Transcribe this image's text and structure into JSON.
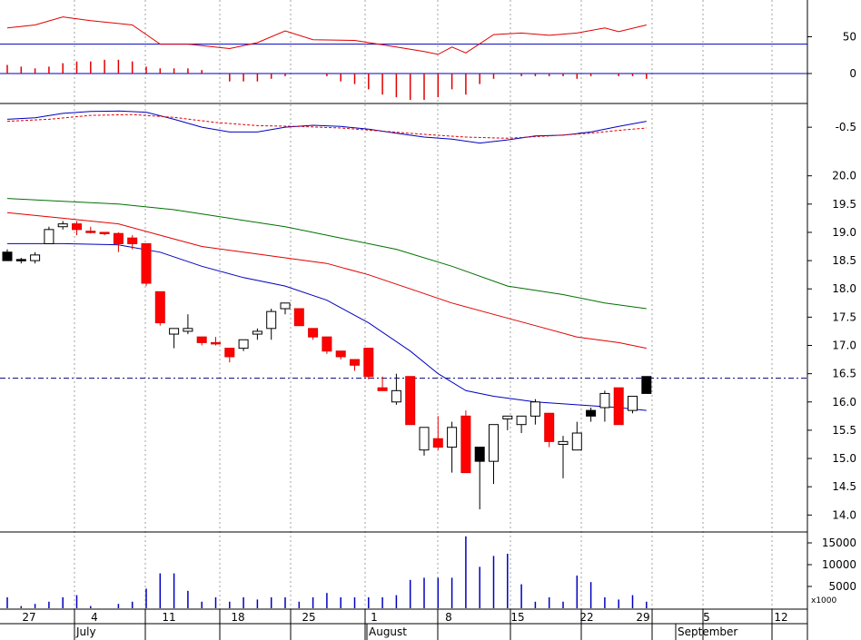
{
  "chart_data": {
    "type": "candlestick",
    "x_axis": {
      "day_labels": [
        "27",
        "4",
        "11",
        "18",
        "25",
        "1",
        "8",
        "15",
        "22",
        "29",
        "5",
        "12"
      ],
      "month_labels": [
        "July",
        "August",
        "September"
      ]
    },
    "price_panel": {
      "type": "candlestick",
      "ylim": [
        13.7,
        20.3
      ],
      "yticks": [
        "14.0",
        "14.5",
        "15.0",
        "15.5",
        "16.0",
        "16.5",
        "17.0",
        "17.5",
        "18.0",
        "18.5",
        "19.0",
        "19.5",
        "20.0"
      ],
      "reference_line": 16.42,
      "candles": [
        {
          "o": 18.65,
          "h": 18.7,
          "l": 18.5,
          "c": 18.5,
          "color": "black"
        },
        {
          "o": 18.5,
          "h": 18.55,
          "l": 18.45,
          "c": 18.52,
          "color": "black"
        },
        {
          "o": 18.5,
          "h": 18.65,
          "l": 18.45,
          "c": 18.6,
          "color": "white"
        },
        {
          "o": 18.8,
          "h": 19.1,
          "l": 18.8,
          "c": 19.05,
          "color": "white"
        },
        {
          "o": 19.1,
          "h": 19.2,
          "l": 19.05,
          "c": 19.15,
          "color": "white"
        },
        {
          "o": 19.15,
          "h": 19.2,
          "l": 18.95,
          "c": 19.05,
          "color": "red"
        },
        {
          "o": 19.02,
          "h": 19.1,
          "l": 18.98,
          "c": 19.0,
          "color": "red"
        },
        {
          "o": 19.0,
          "h": 19.0,
          "l": 18.95,
          "c": 18.98,
          "color": "red"
        },
        {
          "o": 18.98,
          "h": 19.0,
          "l": 18.65,
          "c": 18.8,
          "color": "red"
        },
        {
          "o": 18.9,
          "h": 18.95,
          "l": 18.7,
          "c": 18.8,
          "color": "red"
        },
        {
          "o": 18.8,
          "h": 18.8,
          "l": 18.05,
          "c": 18.1,
          "color": "red"
        },
        {
          "o": 17.95,
          "h": 17.95,
          "l": 17.35,
          "c": 17.4,
          "color": "red"
        },
        {
          "o": 17.2,
          "h": 17.3,
          "l": 16.95,
          "c": 17.3,
          "color": "white"
        },
        {
          "o": 17.25,
          "h": 17.55,
          "l": 17.2,
          "c": 17.3,
          "color": "white"
        },
        {
          "o": 17.15,
          "h": 17.15,
          "l": 17.0,
          "c": 17.05,
          "color": "red"
        },
        {
          "o": 17.05,
          "h": 17.15,
          "l": 17.0,
          "c": 17.05,
          "color": "red"
        },
        {
          "o": 16.95,
          "h": 16.95,
          "l": 16.7,
          "c": 16.8,
          "color": "red"
        },
        {
          "o": 16.95,
          "h": 17.1,
          "l": 16.9,
          "c": 17.1,
          "color": "white"
        },
        {
          "o": 17.2,
          "h": 17.3,
          "l": 17.1,
          "c": 17.25,
          "color": "white"
        },
        {
          "o": 17.3,
          "h": 17.65,
          "l": 17.1,
          "c": 17.6,
          "color": "white"
        },
        {
          "o": 17.65,
          "h": 17.75,
          "l": 17.55,
          "c": 17.75,
          "color": "white"
        },
        {
          "o": 17.65,
          "h": 17.65,
          "l": 17.35,
          "c": 17.35,
          "color": "red"
        },
        {
          "o": 17.3,
          "h": 17.3,
          "l": 17.1,
          "c": 17.15,
          "color": "red"
        },
        {
          "o": 17.15,
          "h": 17.15,
          "l": 16.85,
          "c": 16.9,
          "color": "red"
        },
        {
          "o": 16.9,
          "h": 16.9,
          "l": 16.75,
          "c": 16.8,
          "color": "red"
        },
        {
          "o": 16.75,
          "h": 16.75,
          "l": 16.55,
          "c": 16.65,
          "color": "red"
        },
        {
          "o": 16.95,
          "h": 16.95,
          "l": 16.4,
          "c": 16.45,
          "color": "red"
        },
        {
          "o": 16.25,
          "h": 16.45,
          "l": 16.2,
          "c": 16.2,
          "color": "red"
        },
        {
          "o": 16.0,
          "h": 16.5,
          "l": 15.95,
          "c": 16.2,
          "color": "white"
        },
        {
          "o": 16.45,
          "h": 16.45,
          "l": 15.6,
          "c": 15.6,
          "color": "red"
        },
        {
          "o": 15.15,
          "h": 15.55,
          "l": 15.05,
          "c": 15.55,
          "color": "white"
        },
        {
          "o": 15.35,
          "h": 15.75,
          "l": 15.15,
          "c": 15.2,
          "color": "red"
        },
        {
          "o": 15.2,
          "h": 15.65,
          "l": 14.75,
          "c": 15.55,
          "color": "white"
        },
        {
          "o": 15.75,
          "h": 15.85,
          "l": 14.75,
          "c": 14.75,
          "color": "red"
        },
        {
          "o": 15.2,
          "h": 15.2,
          "l": 14.1,
          "c": 14.95,
          "color": "black"
        },
        {
          "o": 14.95,
          "h": 15.6,
          "l": 14.55,
          "c": 15.6,
          "color": "white"
        },
        {
          "o": 15.7,
          "h": 15.75,
          "l": 15.5,
          "c": 15.75,
          "color": "white"
        },
        {
          "o": 15.6,
          "h": 15.75,
          "l": 15.45,
          "c": 15.75,
          "color": "white"
        },
        {
          "o": 15.75,
          "h": 16.05,
          "l": 15.6,
          "c": 16.0,
          "color": "white"
        },
        {
          "o": 15.8,
          "h": 15.8,
          "l": 15.2,
          "c": 15.3,
          "color": "red"
        },
        {
          "o": 15.25,
          "h": 15.4,
          "l": 14.65,
          "c": 15.3,
          "color": "white"
        },
        {
          "o": 15.15,
          "h": 15.65,
          "l": 15.15,
          "c": 15.45,
          "color": "white"
        },
        {
          "o": 15.85,
          "h": 15.9,
          "l": 15.65,
          "c": 15.75,
          "color": "black"
        },
        {
          "o": 15.9,
          "h": 16.2,
          "l": 15.65,
          "c": 16.15,
          "color": "white"
        },
        {
          "o": 16.25,
          "h": 16.25,
          "l": 15.6,
          "c": 15.6,
          "color": "red"
        },
        {
          "o": 15.85,
          "h": 16.1,
          "l": 15.8,
          "c": 16.1,
          "color": "white"
        },
        {
          "o": 16.45,
          "h": 16.45,
          "l": 16.15,
          "c": 16.15,
          "color": "black"
        }
      ],
      "moving_averages": [
        {
          "color": "#0000c0",
          "values": [
            {
              "i": 0,
              "v": 18.8
            },
            {
              "i": 4,
              "v": 18.8
            },
            {
              "i": 8,
              "v": 18.78
            },
            {
              "i": 11,
              "v": 18.65
            },
            {
              "i": 14,
              "v": 18.4
            },
            {
              "i": 17,
              "v": 18.2
            },
            {
              "i": 20,
              "v": 18.05
            },
            {
              "i": 23,
              "v": 17.8
            },
            {
              "i": 26,
              "v": 17.4
            },
            {
              "i": 29,
              "v": 16.9
            },
            {
              "i": 31,
              "v": 16.5
            },
            {
              "i": 33,
              "v": 16.2
            },
            {
              "i": 35,
              "v": 16.1
            },
            {
              "i": 38,
              "v": 16.0
            },
            {
              "i": 41,
              "v": 15.95
            },
            {
              "i": 44,
              "v": 15.9
            },
            {
              "i": 46,
              "v": 15.85
            }
          ]
        },
        {
          "color": "#e00000",
          "values": [
            {
              "i": 0,
              "v": 19.35
            },
            {
              "i": 4,
              "v": 19.25
            },
            {
              "i": 8,
              "v": 19.15
            },
            {
              "i": 11,
              "v": 18.95
            },
            {
              "i": 14,
              "v": 18.75
            },
            {
              "i": 17,
              "v": 18.65
            },
            {
              "i": 20,
              "v": 18.55
            },
            {
              "i": 23,
              "v": 18.45
            },
            {
              "i": 26,
              "v": 18.25
            },
            {
              "i": 29,
              "v": 18.0
            },
            {
              "i": 32,
              "v": 17.75
            },
            {
              "i": 35,
              "v": 17.55
            },
            {
              "i": 38,
              "v": 17.35
            },
            {
              "i": 41,
              "v": 17.15
            },
            {
              "i": 44,
              "v": 17.05
            },
            {
              "i": 46,
              "v": 16.95
            }
          ]
        },
        {
          "color": "#007000",
          "values": [
            {
              "i": 0,
              "v": 19.6
            },
            {
              "i": 4,
              "v": 19.55
            },
            {
              "i": 8,
              "v": 19.5
            },
            {
              "i": 12,
              "v": 19.4
            },
            {
              "i": 16,
              "v": 19.25
            },
            {
              "i": 20,
              "v": 19.1
            },
            {
              "i": 24,
              "v": 18.9
            },
            {
              "i": 28,
              "v": 18.7
            },
            {
              "i": 32,
              "v": 18.4
            },
            {
              "i": 36,
              "v": 18.05
            },
            {
              "i": 40,
              "v": 17.9
            },
            {
              "i": 43,
              "v": 17.75
            },
            {
              "i": 46,
              "v": 17.65
            }
          ]
        }
      ]
    },
    "rsi_panel": {
      "ylim": [
        0,
        100
      ],
      "yticks": [
        "50"
      ],
      "reference_line": 40,
      "series": {
        "color": "#e00000",
        "values": [
          {
            "i": 0,
            "v": 62
          },
          {
            "i": 2,
            "v": 66
          },
          {
            "i": 4,
            "v": 77
          },
          {
            "i": 6,
            "v": 72
          },
          {
            "i": 9,
            "v": 66
          },
          {
            "i": 11,
            "v": 40
          },
          {
            "i": 13,
            "v": 40
          },
          {
            "i": 16,
            "v": 34
          },
          {
            "i": 18,
            "v": 42
          },
          {
            "i": 20,
            "v": 58
          },
          {
            "i": 22,
            "v": 46
          },
          {
            "i": 25,
            "v": 45
          },
          {
            "i": 28,
            "v": 36
          },
          {
            "i": 30,
            "v": 30
          },
          {
            "i": 31,
            "v": 26
          },
          {
            "i": 32,
            "v": 36
          },
          {
            "i": 33,
            "v": 28
          },
          {
            "i": 35,
            "v": 53
          },
          {
            "i": 37,
            "v": 55
          },
          {
            "i": 39,
            "v": 52
          },
          {
            "i": 41,
            "v": 55
          },
          {
            "i": 43,
            "v": 62
          },
          {
            "i": 44,
            "v": 57
          },
          {
            "i": 46,
            "v": 66
          }
        ]
      }
    },
    "histogram_panel": {
      "ylim": [
        -1,
        1
      ],
      "yticks": [
        "0"
      ],
      "values": [
        0.5,
        0.4,
        0.3,
        0.4,
        0.6,
        0.7,
        0.7,
        0.8,
        0.8,
        0.7,
        0.4,
        0.3,
        0.3,
        0.3,
        0.2,
        0,
        -0.3,
        -0.3,
        -0.3,
        -0.2,
        -0.1,
        0,
        0,
        -0.1,
        -0.3,
        -0.4,
        -0.6,
        -0.8,
        -0.9,
        -1.0,
        -1.0,
        -0.9,
        -0.6,
        -0.8,
        -0.4,
        -0.2,
        0,
        -0.1,
        -0.1,
        -0.1,
        -0.1,
        -0.2,
        -0.1,
        0,
        -0.1,
        -0.1,
        -0.2
      ]
    },
    "macd_panel": {
      "ylim": [
        -1.3,
        0.1
      ],
      "yticks": [
        "-0.5"
      ],
      "macd": {
        "color": "#0000c0",
        "values": [
          {
            "i": 0,
            "v": -0.3
          },
          {
            "i": 2,
            "v": -0.26
          },
          {
            "i": 4,
            "v": -0.15
          },
          {
            "i": 6,
            "v": -0.1
          },
          {
            "i": 8,
            "v": -0.09
          },
          {
            "i": 10,
            "v": -0.12
          },
          {
            "i": 12,
            "v": -0.3
          },
          {
            "i": 14,
            "v": -0.5
          },
          {
            "i": 16,
            "v": -0.62
          },
          {
            "i": 18,
            "v": -0.62
          },
          {
            "i": 20,
            "v": -0.5
          },
          {
            "i": 22,
            "v": -0.45
          },
          {
            "i": 24,
            "v": -0.48
          },
          {
            "i": 26,
            "v": -0.55
          },
          {
            "i": 28,
            "v": -0.65
          },
          {
            "i": 30,
            "v": -0.75
          },
          {
            "i": 32,
            "v": -0.8
          },
          {
            "i": 34,
            "v": -0.9
          },
          {
            "i": 36,
            "v": -0.82
          },
          {
            "i": 38,
            "v": -0.72
          },
          {
            "i": 40,
            "v": -0.7
          },
          {
            "i": 42,
            "v": -0.62
          },
          {
            "i": 44,
            "v": -0.48
          },
          {
            "i": 46,
            "v": -0.35
          }
        ]
      },
      "signal": {
        "color": "#e00000",
        "values": [
          {
            "i": 0,
            "v": -0.35
          },
          {
            "i": 3,
            "v": -0.3
          },
          {
            "i": 6,
            "v": -0.2
          },
          {
            "i": 9,
            "v": -0.18
          },
          {
            "i": 12,
            "v": -0.25
          },
          {
            "i": 15,
            "v": -0.38
          },
          {
            "i": 18,
            "v": -0.46
          },
          {
            "i": 21,
            "v": -0.48
          },
          {
            "i": 24,
            "v": -0.52
          },
          {
            "i": 27,
            "v": -0.6
          },
          {
            "i": 30,
            "v": -0.68
          },
          {
            "i": 33,
            "v": -0.75
          },
          {
            "i": 36,
            "v": -0.78
          },
          {
            "i": 39,
            "v": -0.72
          },
          {
            "i": 42,
            "v": -0.65
          },
          {
            "i": 44,
            "v": -0.58
          },
          {
            "i": 46,
            "v": -0.52
          }
        ]
      }
    },
    "volume_panel": {
      "ylim": [
        0,
        17500
      ],
      "yticks": [
        "5000",
        "10000",
        "15000"
      ],
      "unit_label": "x1000",
      "values": [
        2500,
        500,
        1000,
        1500,
        2500,
        3000,
        500,
        0,
        1000,
        1500,
        4500,
        8000,
        8000,
        4000,
        1500,
        2500,
        1500,
        2500,
        2000,
        2500,
        2500,
        1500,
        2500,
        3500,
        2500,
        2500,
        2500,
        2500,
        3000,
        6500,
        7000,
        7000,
        7000,
        16500,
        9500,
        12000,
        12500,
        5500,
        1500,
        2500,
        1500,
        7500,
        6000,
        2500,
        2000,
        3000,
        1500
      ]
    }
  }
}
